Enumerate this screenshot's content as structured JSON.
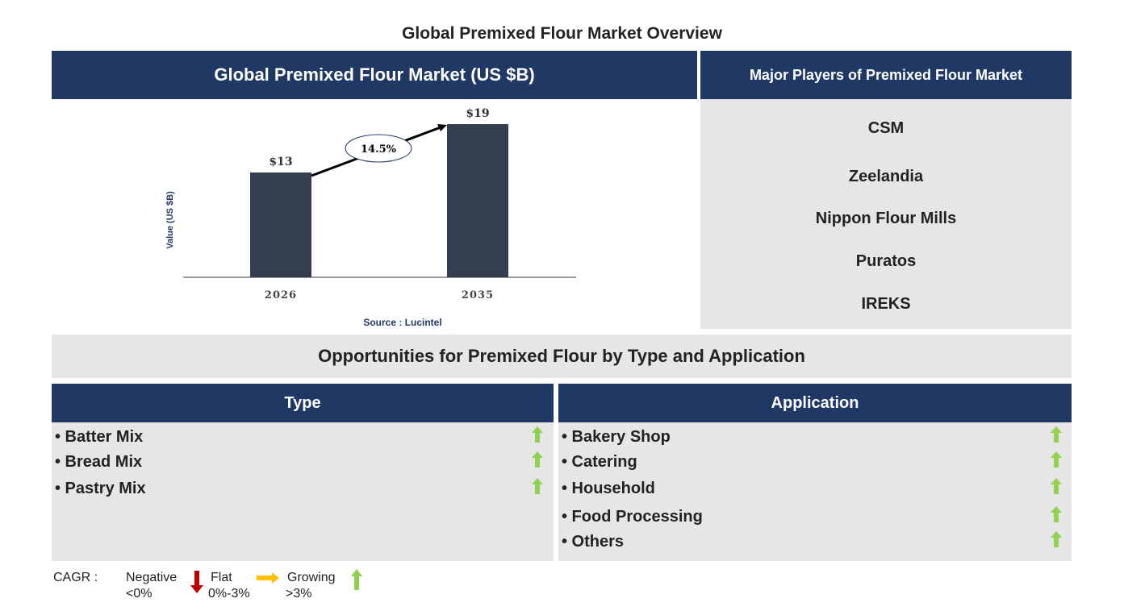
{
  "page_title": "Global Premixed Flour Market Overview",
  "market_panel": {
    "title": "Global Premixed Flour Market (US $B)",
    "source": "Source : Lucintel"
  },
  "players_panel": {
    "title": "Major Players of Premixed Flour Market",
    "players": [
      "CSM",
      "Zeelandia",
      "Nippon Flour Mills",
      "Puratos",
      "IREKS"
    ]
  },
  "opportunities": {
    "title": "Opportunities for Premixed Flour by Type and Application",
    "type": {
      "title": "Type",
      "items": [
        "• Batter Mix",
        "• Bread Mix",
        "• Pastry Mix"
      ],
      "trend": [
        "growing",
        "growing",
        "growing"
      ]
    },
    "application": {
      "title": "Application",
      "items": [
        "• Bakery Shop",
        "• Catering",
        "• Household",
        "• Food Processing",
        "• Others"
      ],
      "trend": [
        "growing",
        "growing",
        "growing",
        "growing",
        "growing"
      ]
    }
  },
  "legend": {
    "label": "CAGR :",
    "negative": "Negative",
    "negative_range": "<0%",
    "flat": "Flat",
    "flat_range": "0%-3%",
    "growing": "Growing",
    "growing_range": ">3%"
  },
  "colors": {
    "navy": "#203864",
    "bar": "#333f50",
    "panel_gray": "#e6e6e6",
    "up_arrow": "#92d050",
    "down_arrow": "#c00000",
    "flat_arrow": "#ffc000"
  },
  "chart_data": {
    "type": "bar",
    "categories": [
      "2026",
      "2035"
    ],
    "values": [
      13,
      19
    ],
    "data_labels": [
      "$13",
      "$19"
    ],
    "ylabel": "Value (US $B)",
    "annotation": "14.5%",
    "ylim": [
      0,
      19
    ],
    "grid": false
  }
}
